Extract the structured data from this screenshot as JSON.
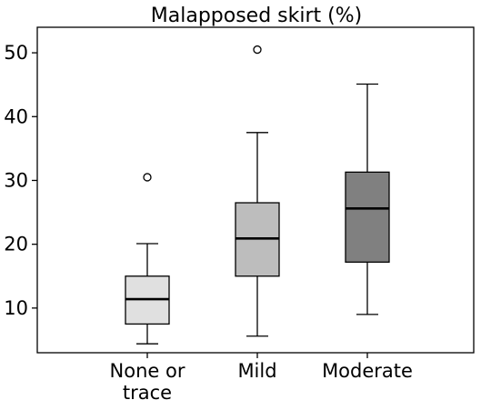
{
  "chart_data": {
    "type": "box",
    "title": "Malapposed skirt (%)",
    "xlabel": "",
    "ylabel": "",
    "ylim": [
      3,
      54
    ],
    "yticks": [
      10,
      20,
      30,
      40,
      50
    ],
    "grid": false,
    "categories": [
      {
        "lines": [
          "None or",
          "trace"
        ]
      },
      {
        "lines": [
          "Mild"
        ]
      },
      {
        "lines": [
          "Moderate"
        ]
      }
    ],
    "boxes": [
      {
        "whisker_low": 4.4,
        "q1": 7.5,
        "median": 11.4,
        "q3": 15.0,
        "whisker_high": 20.1,
        "outliers": [
          30.5
        ],
        "color": "#e0e0e0"
      },
      {
        "whisker_low": 5.6,
        "q1": 15.0,
        "median": 20.9,
        "q3": 26.5,
        "whisker_high": 37.5,
        "outliers": [
          50.5
        ],
        "color": "#bdbdbd"
      },
      {
        "whisker_low": 9.0,
        "q1": 17.2,
        "median": 25.6,
        "q3": 31.3,
        "whisker_high": 45.1,
        "outliers": [],
        "color": "#808080"
      }
    ]
  }
}
